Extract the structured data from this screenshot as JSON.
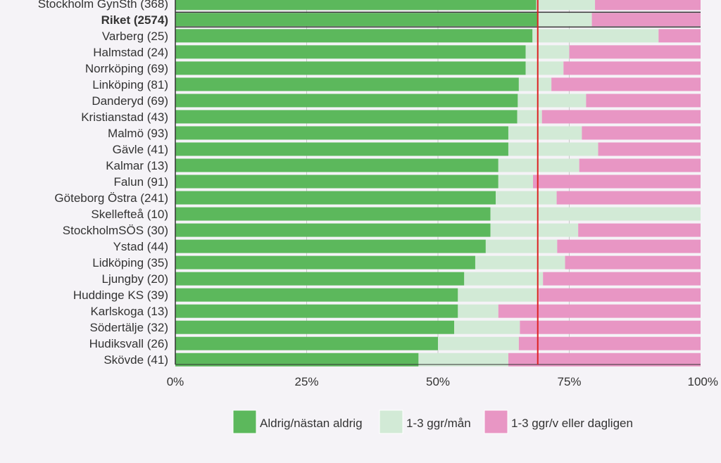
{
  "chart_data": {
    "type": "bar",
    "orientation": "horizontal",
    "stacked": "percent",
    "xlim": [
      0,
      100
    ],
    "x_ticks": [
      "0%",
      "25%",
      "50%",
      "75%",
      "100%"
    ],
    "reference_line": {
      "value": 69,
      "color": "#dd2222"
    },
    "highlight_category": "Riket (2574)",
    "categories": [
      "Stockholm GynSth (368)",
      "Riket (2574)",
      "Varberg (25)",
      "Halmstad (24)",
      "Norrköping (69)",
      "Linköping (81)",
      "Danderyd (69)",
      "Kristianstad (43)",
      "Malmö (93)",
      "Gävle (41)",
      "Kalmar (13)",
      "Falun (91)",
      "Göteborg Östra (241)",
      "Skellefteå (10)",
      "StockholmSÖS (30)",
      "Ystad (44)",
      "Lidköping (35)",
      "Ljungby (20)",
      "Huddinge KS (39)",
      "Karlskoga (13)",
      "Södertälje (32)",
      "Hudiksvall (26)",
      "Skövde (41)"
    ],
    "series": [
      {
        "name": "Aldrig/nästan aldrig",
        "color": "#5cb85c",
        "values": [
          68.7,
          68.9,
          68.0,
          66.7,
          66.7,
          65.4,
          65.2,
          65.1,
          63.4,
          63.4,
          61.5,
          61.5,
          61.0,
          60.0,
          60.0,
          59.1,
          57.1,
          55.0,
          53.8,
          53.8,
          53.1,
          50.0,
          46.3
        ]
      },
      {
        "name": "1-3 ggr/mån",
        "color": "#d2ead6",
        "values": [
          11.2,
          10.4,
          24.0,
          8.3,
          7.2,
          6.2,
          13.0,
          4.7,
          14.0,
          17.1,
          15.4,
          6.6,
          11.6,
          40.0,
          16.7,
          13.6,
          17.1,
          15.0,
          15.4,
          7.7,
          12.5,
          15.4,
          17.1
        ]
      },
      {
        "name": "1-3 ggr/v eller dagligen",
        "color": "#e896c4",
        "values": [
          20.1,
          20.7,
          8.0,
          25.0,
          26.1,
          28.4,
          21.8,
          30.2,
          22.6,
          19.5,
          23.1,
          31.9,
          27.4,
          0.0,
          23.3,
          27.3,
          25.8,
          30.0,
          30.8,
          38.5,
          34.4,
          34.6,
          36.6
        ]
      }
    ]
  }
}
